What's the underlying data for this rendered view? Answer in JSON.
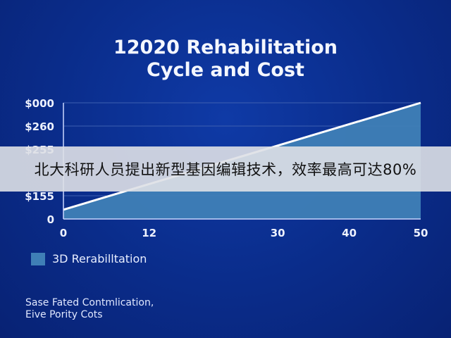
{
  "chart_data": {
    "type": "area",
    "title_lines": [
      "12020 Rehabilitation",
      "Cycle and Cost"
    ],
    "x_ticks": [
      0,
      12,
      30,
      40,
      50
    ],
    "y_tick_labels": [
      "$000",
      "$260",
      "$255",
      "",
      "$155",
      "0"
    ],
    "series": [
      {
        "name": "3D Rerabilltation",
        "x": [
          0,
          50
        ],
        "y": [
          0.08,
          1.0
        ]
      }
    ],
    "xlim": [
      0,
      50
    ],
    "ylim": [
      0,
      1
    ],
    "grid": true,
    "legend_position": "bottom-left",
    "footnote_lines": [
      "Sase Fated Contmlication,",
      "Eive Pority Cots"
    ],
    "colors": {
      "background": "#0a2c8a",
      "fill": "#3f7fb6",
      "line": "#ffffff",
      "grid": "#3d5fb0"
    }
  },
  "banner": {
    "text": "北大科研人员提出新型基因编辑技术，效率最高可达80%"
  }
}
